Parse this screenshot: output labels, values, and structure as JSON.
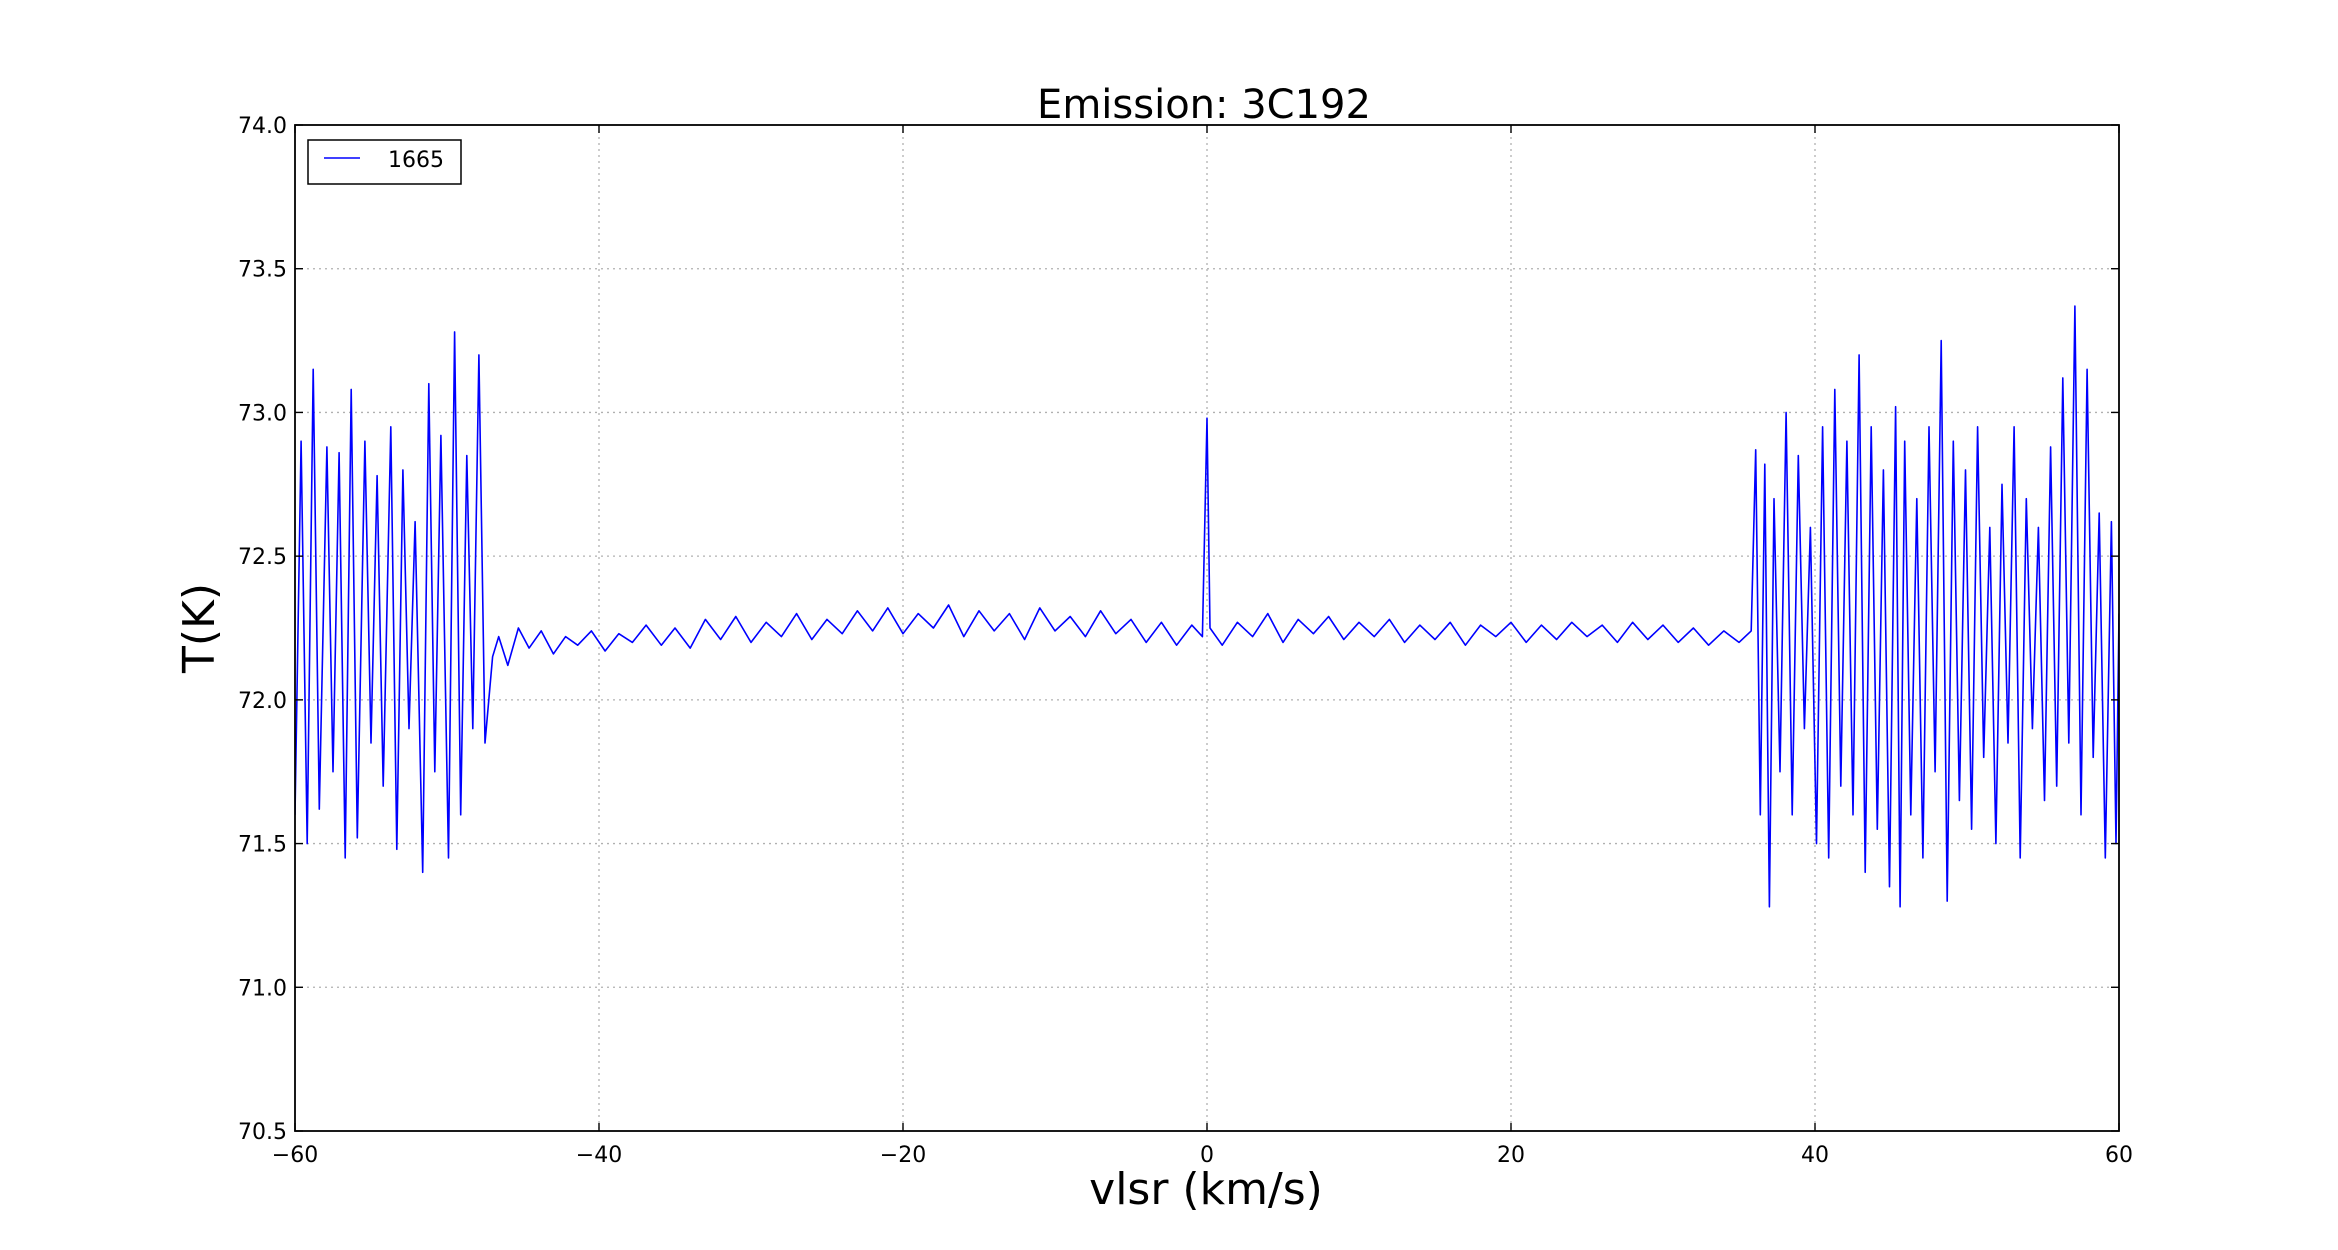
{
  "chart_data": {
    "type": "line",
    "title": "Emission: 3C192",
    "xlabel": "vlsr (km/s)",
    "ylabel": "T(K)",
    "xlim": [
      -60,
      60
    ],
    "ylim": [
      70.5,
      74.0
    ],
    "xticks": [
      -60,
      -40,
      -20,
      0,
      20,
      40,
      60
    ],
    "xtick_labels": [
      "−60",
      "−40",
      "−20",
      "0",
      "20",
      "40",
      "60"
    ],
    "yticks": [
      70.5,
      71.0,
      71.5,
      72.0,
      72.5,
      73.0,
      73.5,
      74.0
    ],
    "ytick_labels": [
      "70.5",
      "71.0",
      "71.5",
      "72.0",
      "72.5",
      "73.0",
      "73.5",
      "74.0"
    ],
    "grid": true,
    "legend_position": "upper-left",
    "series": [
      {
        "name": "1665",
        "color": "#0000ff",
        "segments": [
          {
            "x_range": [
              -60,
              -47
            ],
            "baseline": 72.2,
            "noise_amplitude": 0.85
          },
          {
            "x_range": [
              -47,
              36
            ],
            "baseline": 72.23,
            "noise_amplitude": 0.07
          },
          {
            "x_range": [
              36,
              60
            ],
            "baseline": 72.2,
            "noise_amplitude": 0.9
          }
        ],
        "points": [
          [
            -60.0,
            71.6
          ],
          [
            -59.6,
            72.9
          ],
          [
            -59.2,
            71.5
          ],
          [
            -58.8,
            73.15
          ],
          [
            -58.4,
            71.62
          ],
          [
            -57.9,
            72.88
          ],
          [
            -57.5,
            71.75
          ],
          [
            -57.1,
            72.86
          ],
          [
            -56.7,
            71.45
          ],
          [
            -56.3,
            73.08
          ],
          [
            -55.9,
            71.52
          ],
          [
            -55.4,
            72.9
          ],
          [
            -55.0,
            71.85
          ],
          [
            -54.6,
            72.78
          ],
          [
            -54.2,
            71.7
          ],
          [
            -53.7,
            72.95
          ],
          [
            -53.3,
            71.48
          ],
          [
            -52.9,
            72.8
          ],
          [
            -52.5,
            71.9
          ],
          [
            -52.1,
            72.62
          ],
          [
            -51.6,
            71.4
          ],
          [
            -51.2,
            73.1
          ],
          [
            -50.8,
            71.75
          ],
          [
            -50.4,
            72.92
          ],
          [
            -49.9,
            71.45
          ],
          [
            -49.5,
            73.28
          ],
          [
            -49.1,
            71.6
          ],
          [
            -48.7,
            72.85
          ],
          [
            -48.3,
            71.9
          ],
          [
            -47.9,
            73.2
          ],
          [
            -47.5,
            71.85
          ],
          [
            -47.0,
            72.15
          ],
          [
            -46.6,
            72.22
          ],
          [
            -46.0,
            72.12
          ],
          [
            -45.3,
            72.25
          ],
          [
            -44.6,
            72.18
          ],
          [
            -43.8,
            72.24
          ],
          [
            -43.0,
            72.16
          ],
          [
            -42.2,
            72.22
          ],
          [
            -41.4,
            72.19
          ],
          [
            -40.5,
            72.24
          ],
          [
            -39.6,
            72.17
          ],
          [
            -38.7,
            72.23
          ],
          [
            -37.8,
            72.2
          ],
          [
            -36.9,
            72.26
          ],
          [
            -35.9,
            72.19
          ],
          [
            -35.0,
            72.25
          ],
          [
            -34.0,
            72.18
          ],
          [
            -33.0,
            72.28
          ],
          [
            -32.0,
            72.21
          ],
          [
            -31.0,
            72.29
          ],
          [
            -30.0,
            72.2
          ],
          [
            -29.0,
            72.27
          ],
          [
            -28.0,
            72.22
          ],
          [
            -27.0,
            72.3
          ],
          [
            -26.0,
            72.21
          ],
          [
            -25.0,
            72.28
          ],
          [
            -24.0,
            72.23
          ],
          [
            -23.0,
            72.31
          ],
          [
            -22.0,
            72.24
          ],
          [
            -21.0,
            72.32
          ],
          [
            -20.0,
            72.23
          ],
          [
            -19.0,
            72.3
          ],
          [
            -18.0,
            72.25
          ],
          [
            -17.0,
            72.33
          ],
          [
            -16.0,
            72.22
          ],
          [
            -15.0,
            72.31
          ],
          [
            -14.0,
            72.24
          ],
          [
            -13.0,
            72.3
          ],
          [
            -12.0,
            72.21
          ],
          [
            -11.0,
            72.32
          ],
          [
            -10.0,
            72.24
          ],
          [
            -9.0,
            72.29
          ],
          [
            -8.0,
            72.22
          ],
          [
            -7.0,
            72.31
          ],
          [
            -6.0,
            72.23
          ],
          [
            -5.0,
            72.28
          ],
          [
            -4.0,
            72.2
          ],
          [
            -3.0,
            72.27
          ],
          [
            -2.0,
            72.19
          ],
          [
            -1.0,
            72.26
          ],
          [
            -0.3,
            72.22
          ],
          [
            0.0,
            72.98
          ],
          [
            0.2,
            72.25
          ],
          [
            1.0,
            72.19
          ],
          [
            2.0,
            72.27
          ],
          [
            3.0,
            72.22
          ],
          [
            4.0,
            72.3
          ],
          [
            5.0,
            72.2
          ],
          [
            6.0,
            72.28
          ],
          [
            7.0,
            72.23
          ],
          [
            8.0,
            72.29
          ],
          [
            9.0,
            72.21
          ],
          [
            10.0,
            72.27
          ],
          [
            11.0,
            72.22
          ],
          [
            12.0,
            72.28
          ],
          [
            13.0,
            72.2
          ],
          [
            14.0,
            72.26
          ],
          [
            15.0,
            72.21
          ],
          [
            16.0,
            72.27
          ],
          [
            17.0,
            72.19
          ],
          [
            18.0,
            72.26
          ],
          [
            19.0,
            72.22
          ],
          [
            20.0,
            72.27
          ],
          [
            21.0,
            72.2
          ],
          [
            22.0,
            72.26
          ],
          [
            23.0,
            72.21
          ],
          [
            24.0,
            72.27
          ],
          [
            25.0,
            72.22
          ],
          [
            26.0,
            72.26
          ],
          [
            27.0,
            72.2
          ],
          [
            28.0,
            72.27
          ],
          [
            29.0,
            72.21
          ],
          [
            30.0,
            72.26
          ],
          [
            31.0,
            72.2
          ],
          [
            32.0,
            72.25
          ],
          [
            33.0,
            72.19
          ],
          [
            34.0,
            72.24
          ],
          [
            35.0,
            72.2
          ],
          [
            35.8,
            72.24
          ],
          [
            36.1,
            72.87
          ],
          [
            36.4,
            71.6
          ],
          [
            36.7,
            72.82
          ],
          [
            37.0,
            71.28
          ],
          [
            37.3,
            72.7
          ],
          [
            37.7,
            71.75
          ],
          [
            38.1,
            73.0
          ],
          [
            38.5,
            71.6
          ],
          [
            38.9,
            72.85
          ],
          [
            39.3,
            71.9
          ],
          [
            39.7,
            72.6
          ],
          [
            40.1,
            71.5
          ],
          [
            40.5,
            72.95
          ],
          [
            40.9,
            71.45
          ],
          [
            41.3,
            73.08
          ],
          [
            41.7,
            71.7
          ],
          [
            42.1,
            72.9
          ],
          [
            42.5,
            71.6
          ],
          [
            42.9,
            73.2
          ],
          [
            43.3,
            71.4
          ],
          [
            43.7,
            72.95
          ],
          [
            44.1,
            71.55
          ],
          [
            44.5,
            72.8
          ],
          [
            44.9,
            71.35
          ],
          [
            45.3,
            73.02
          ],
          [
            45.6,
            71.28
          ],
          [
            45.9,
            72.9
          ],
          [
            46.3,
            71.6
          ],
          [
            46.7,
            72.7
          ],
          [
            47.1,
            71.45
          ],
          [
            47.5,
            72.95
          ],
          [
            47.9,
            71.75
          ],
          [
            48.3,
            73.25
          ],
          [
            48.7,
            71.3
          ],
          [
            49.1,
            72.9
          ],
          [
            49.5,
            71.65
          ],
          [
            49.9,
            72.8
          ],
          [
            50.3,
            71.55
          ],
          [
            50.7,
            72.95
          ],
          [
            51.1,
            71.8
          ],
          [
            51.5,
            72.6
          ],
          [
            51.9,
            71.5
          ],
          [
            52.3,
            72.75
          ],
          [
            52.7,
            71.85
          ],
          [
            53.1,
            72.95
          ],
          [
            53.5,
            71.45
          ],
          [
            53.9,
            72.7
          ],
          [
            54.3,
            71.9
          ],
          [
            54.7,
            72.6
          ],
          [
            55.1,
            71.65
          ],
          [
            55.5,
            72.88
          ],
          [
            55.9,
            71.7
          ],
          [
            56.3,
            73.12
          ],
          [
            56.7,
            71.85
          ],
          [
            57.1,
            73.37
          ],
          [
            57.5,
            71.6
          ],
          [
            57.9,
            73.15
          ],
          [
            58.3,
            71.8
          ],
          [
            58.7,
            72.65
          ],
          [
            59.1,
            71.45
          ],
          [
            59.5,
            72.62
          ],
          [
            59.8,
            71.5
          ],
          [
            60.0,
            72.3
          ]
        ]
      }
    ]
  }
}
